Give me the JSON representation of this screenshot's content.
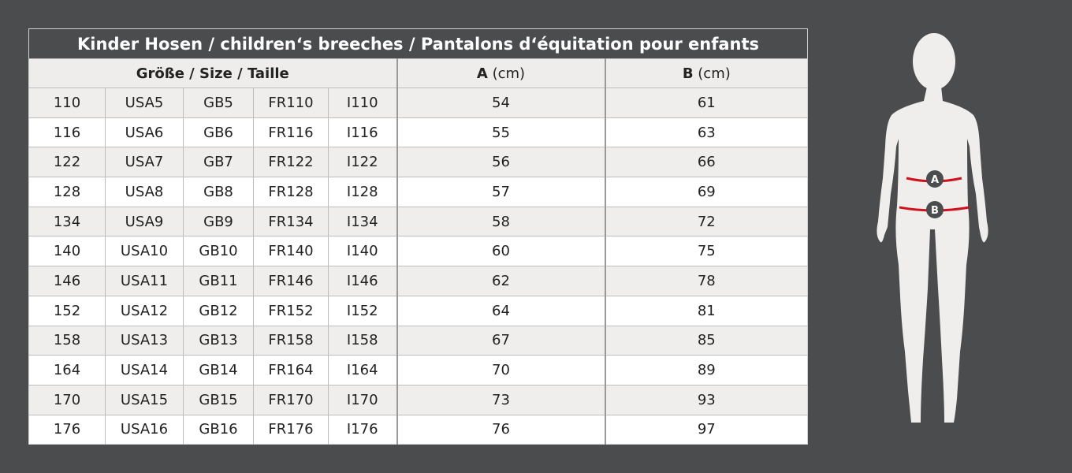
{
  "title": "Kinder Hosen / children‘s breeches /  Pantalons d‘équitation pour enfants",
  "headers": {
    "size": "Größe / Size / Taille",
    "a_letter": "A",
    "a_unit": "(cm)",
    "b_letter": "B",
    "b_unit": "(cm)"
  },
  "rows": [
    [
      "110",
      "USA5",
      "GB5",
      "FR110",
      "I110",
      "54",
      "61"
    ],
    [
      "116",
      "USA6",
      "GB6",
      "FR116",
      "I116",
      "55",
      "63"
    ],
    [
      "122",
      "USA7",
      "GB7",
      "FR122",
      "I122",
      "56",
      "66"
    ],
    [
      "128",
      "USA8",
      "GB8",
      "FR128",
      "I128",
      "57",
      "69"
    ],
    [
      "134",
      "USA9",
      "GB9",
      "FR134",
      "I134",
      "58",
      "72"
    ],
    [
      "140",
      "USA10",
      "GB10",
      "FR140",
      "I140",
      "60",
      "75"
    ],
    [
      "146",
      "USA11",
      "GB11",
      "FR146",
      "I146",
      "62",
      "78"
    ],
    [
      "152",
      "USA12",
      "GB12",
      "FR152",
      "I152",
      "64",
      "81"
    ],
    [
      "158",
      "USA13",
      "GB13",
      "FR158",
      "I158",
      "67",
      "85"
    ],
    [
      "164",
      "USA14",
      "GB14",
      "FR164",
      "I164",
      "70",
      "89"
    ],
    [
      "170",
      "USA15",
      "GB15",
      "FR170",
      "I170",
      "73",
      "93"
    ],
    [
      "176",
      "USA16",
      "GB16",
      "FR176",
      "I176",
      "76",
      "97"
    ]
  ],
  "figure": {
    "marker_a": "A",
    "marker_b": "B",
    "line_color": "#d0101b",
    "body_color": "#efeeec"
  }
}
